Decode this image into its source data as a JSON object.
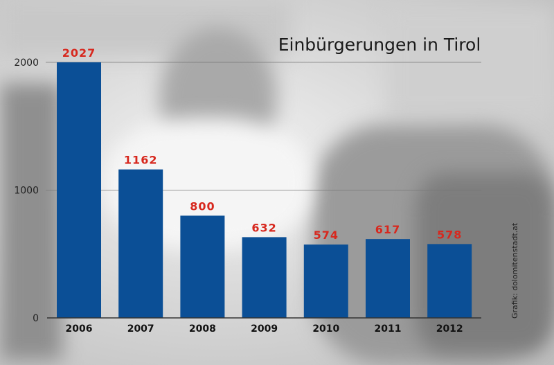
{
  "chart_data": {
    "type": "bar",
    "title": "Einbürgerungen in Tirol",
    "categories": [
      "2006",
      "2007",
      "2008",
      "2009",
      "2010",
      "2011",
      "2012"
    ],
    "values": [
      2027,
      1162,
      800,
      632,
      574,
      617,
      578
    ],
    "ylim": [
      0,
      2000
    ],
    "yticks": [
      "0",
      "1000",
      "2000"
    ],
    "grid": true,
    "bar_color": "#0b4f96",
    "label_color": "#d7281e"
  },
  "source": "Grafik: dolomitenstadt.at"
}
